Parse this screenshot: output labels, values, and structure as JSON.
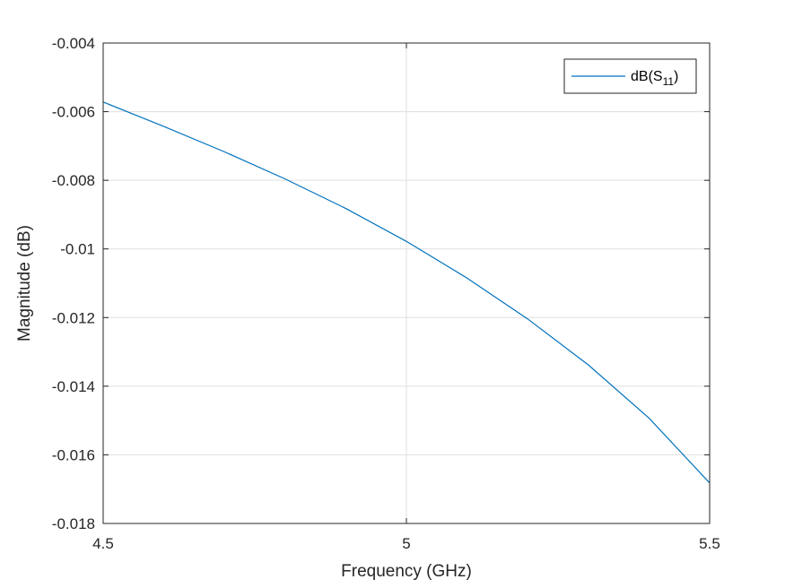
{
  "chart_data": {
    "type": "line",
    "title": "",
    "xlabel": "Frequency (GHz)",
    "ylabel": "Magnitude (dB)",
    "xlim": [
      4.5,
      5.5
    ],
    "ylim": [
      -0.018,
      -0.004
    ],
    "xticks": [
      4.5,
      5,
      5.5
    ],
    "xtick_labels": [
      "4.5",
      "5",
      "5.5"
    ],
    "yticks": [
      -0.018,
      -0.016,
      -0.014,
      -0.012,
      -0.01,
      -0.008,
      -0.006,
      -0.004
    ],
    "ytick_labels": [
      "-0.018",
      "-0.016",
      "-0.014",
      "-0.012",
      "-0.01",
      "-0.008",
      "-0.006",
      "-0.004"
    ],
    "grid": true,
    "legend": {
      "placement": "top-right",
      "label_main": "dB(S",
      "label_sub": "11",
      "label_close": ")"
    },
    "series": [
      {
        "name": "dB(S11)",
        "color": "#0072bd",
        "x": [
          4.5,
          4.6,
          4.7,
          4.8,
          4.9,
          5.0,
          5.1,
          5.2,
          5.3,
          5.4,
          5.5
        ],
        "y": [
          -0.00572,
          -0.00643,
          -0.00717,
          -0.00796,
          -0.00882,
          -0.00978,
          -0.01085,
          -0.01204,
          -0.01338,
          -0.01493,
          -0.01682
        ]
      }
    ]
  }
}
